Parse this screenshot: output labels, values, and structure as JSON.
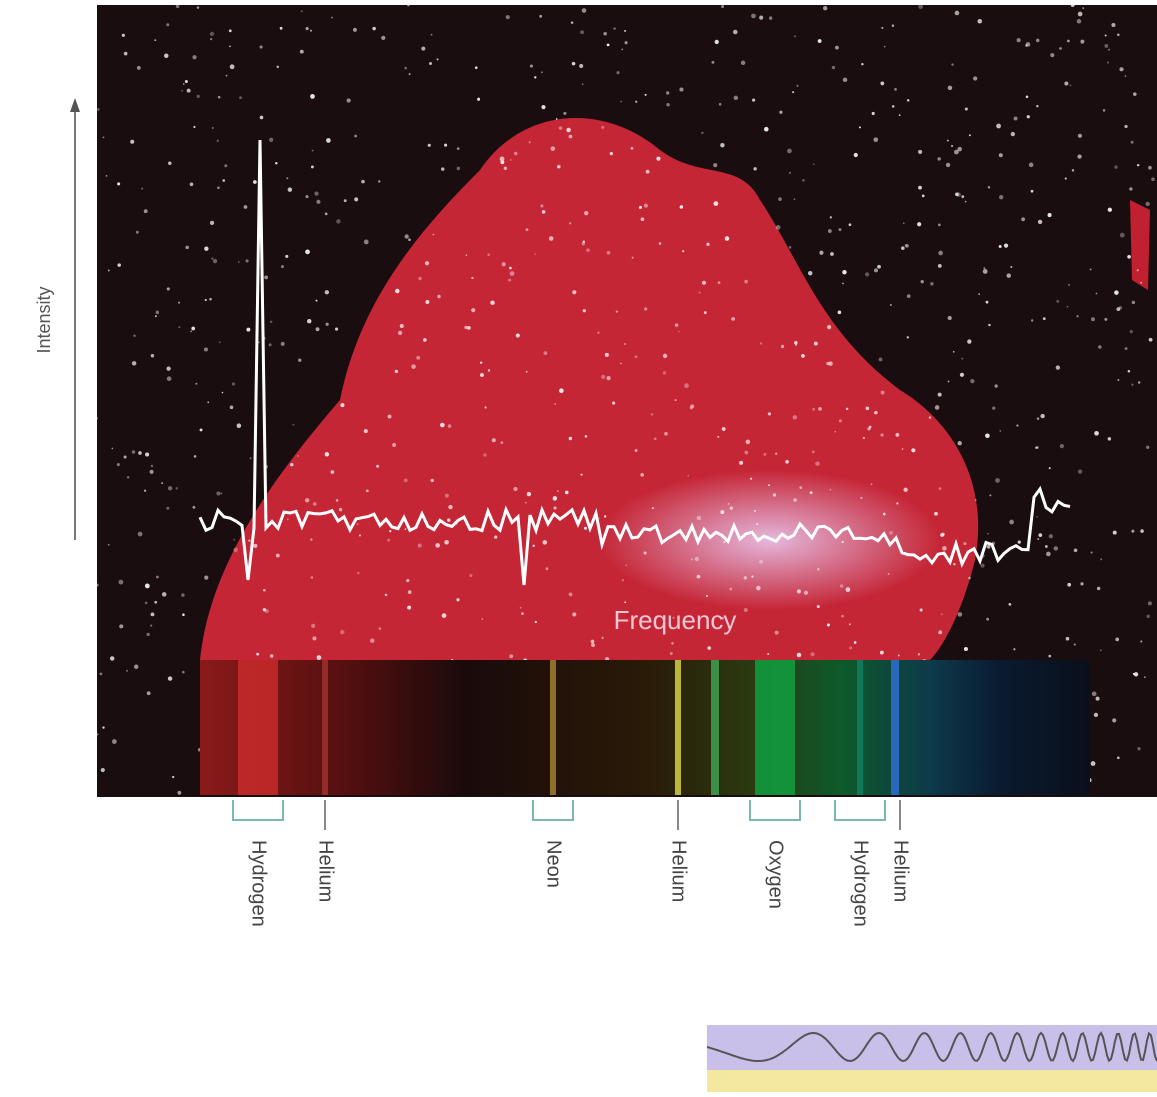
{
  "axis_labels": {
    "y": "Intensity",
    "x": "Frequency"
  },
  "spectral_lines": [
    "Hydrogen",
    "Helium",
    "Neon",
    "Helium",
    "Oxygen",
    "Hydrogen",
    "Helium"
  ]
}
